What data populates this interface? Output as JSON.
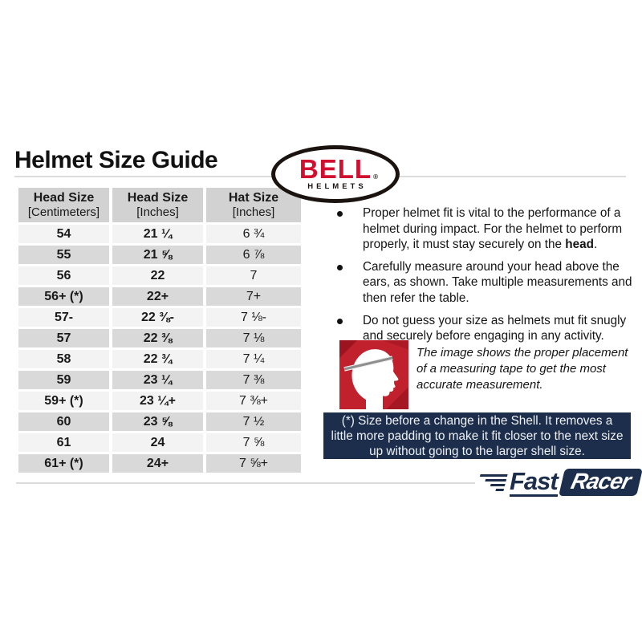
{
  "page": {
    "title": "Helmet Size Guide"
  },
  "brand": {
    "bell_word": "BELL",
    "bell_reg": "®",
    "bell_sub": "HELMETS"
  },
  "colors": {
    "bell_red": "#d10f2f",
    "navy": "#1d2e4c",
    "icon_red": "#c1202d",
    "header_gray": "#d2d2d2",
    "row_light": "#f3f3f3",
    "row_dark": "#d9d9d9"
  },
  "table": {
    "headers": [
      {
        "line1": "Head Size",
        "line2": "[Centimeters]"
      },
      {
        "line1": "Head Size",
        "line2": "[Inches]"
      },
      {
        "line1": "Hat Size",
        "line2": "[Inches]"
      }
    ],
    "rows": [
      [
        "54",
        "21 ¼",
        "6 ¾"
      ],
      [
        "55",
        "21 ⅝",
        "6 ⅞"
      ],
      [
        "56",
        "22",
        "7"
      ],
      [
        "56+ (*)",
        "22+",
        "7+"
      ],
      [
        "57-",
        "22 ⅜-",
        "7 ⅛-"
      ],
      [
        "57",
        "22 ⅜",
        "7 ⅛"
      ],
      [
        "58",
        "22 ¾",
        "7 ¼"
      ],
      [
        "59",
        "23 ¼",
        "7 ⅜"
      ],
      [
        "59+ (*)",
        "23 ¼+",
        "7 ⅜+"
      ],
      [
        "60",
        "23 ⅝",
        "7 ½"
      ],
      [
        "61",
        "24",
        "7 ⅝"
      ],
      [
        "61+ (*)",
        "24+",
        "7 ⅝+"
      ]
    ]
  },
  "bullets": [
    {
      "pre": "Proper helmet fit is vital to the performance of a helmet during impact. For the helmet to perform properly, it must stay securely on the ",
      "bold": "head",
      "post": "."
    },
    {
      "text": "Carefully measure around your head above the ears, as shown. Take multiple measurements and then refer the table."
    },
    {
      "text": "Do not guess your size as helmets mut fit snugly and securely before engaging in any activity."
    }
  ],
  "measure_caption": "The image shows the proper placement of a measuring tape to get the most accurate measurement.",
  "note": "(*) Size before a change in the Shell. It removes a little more padding to make it fit closer to the next size up without going to the larger shell size.",
  "footer_logo": {
    "fast": "Fast",
    "racer": "Racer"
  }
}
